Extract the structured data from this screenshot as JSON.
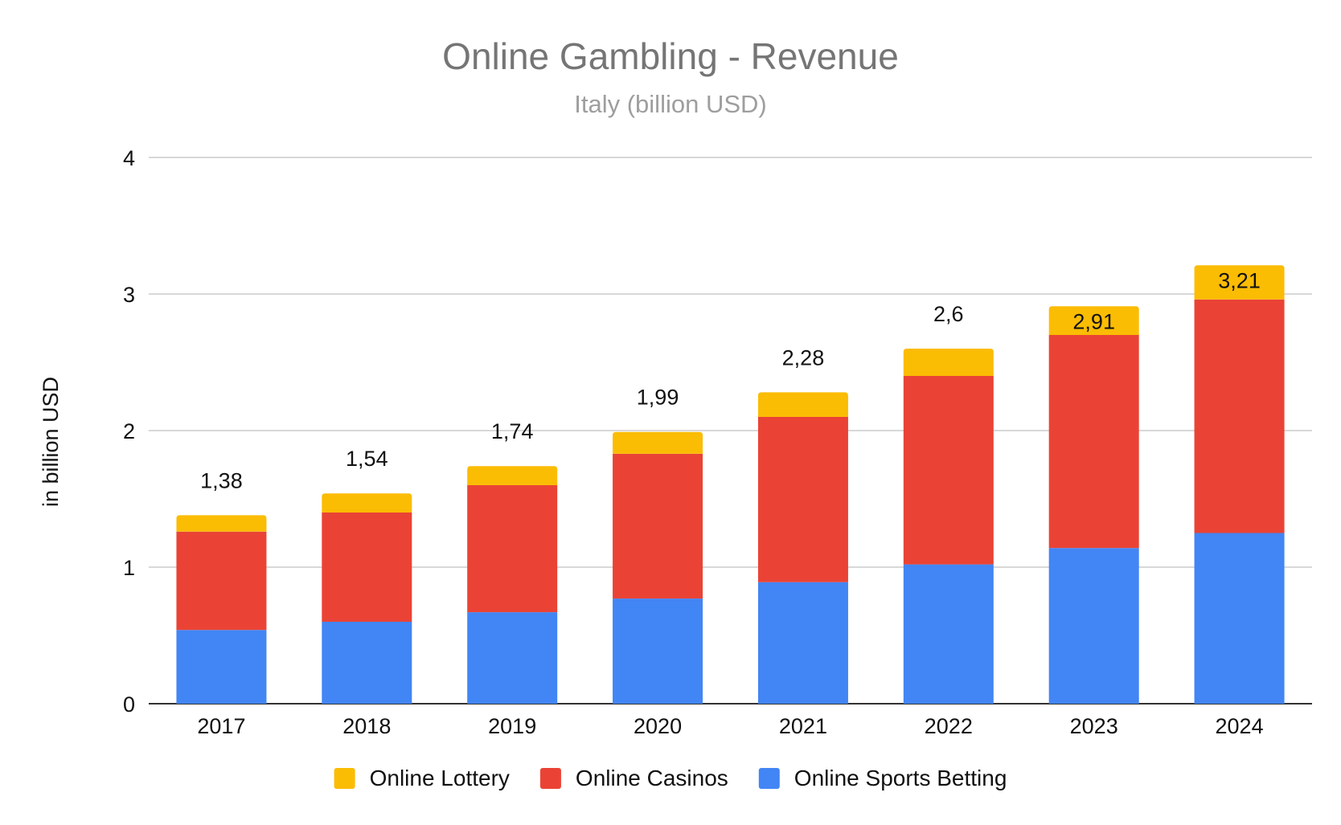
{
  "chart_data": {
    "type": "bar",
    "stacked": true,
    "title": "Online Gambling - Revenue",
    "subtitle": "Italy (billion USD)",
    "xlabel": "",
    "ylabel": "in billion USD",
    "ylim": [
      0,
      4
    ],
    "yticks": [
      "0",
      "1",
      "2",
      "3",
      "4"
    ],
    "grid": true,
    "legend_position": "bottom",
    "categories": [
      "2017",
      "2018",
      "2019",
      "2020",
      "2021",
      "2022",
      "2023",
      "2024"
    ],
    "series": [
      {
        "name": "Online Sports Betting",
        "color": "#4285f4",
        "values": [
          0.54,
          0.6,
          0.67,
          0.77,
          0.89,
          1.02,
          1.14,
          1.25
        ]
      },
      {
        "name": "Online Casinos",
        "color": "#ea4335",
        "values": [
          0.72,
          0.8,
          0.93,
          1.06,
          1.21,
          1.38,
          1.56,
          1.71
        ]
      },
      {
        "name": "Online Lottery",
        "color": "#fbbc04",
        "values": [
          0.12,
          0.14,
          0.14,
          0.16,
          0.18,
          0.2,
          0.21,
          0.25
        ]
      }
    ],
    "totals": [
      1.38,
      1.54,
      1.74,
      1.99,
      2.28,
      2.6,
      2.91,
      3.21
    ],
    "total_labels": [
      "1,38",
      "1,54",
      "1,74",
      "1,99",
      "2,28",
      "2,6",
      "2,91",
      "3,21"
    ],
    "legend_order": [
      "Online Lottery",
      "Online Casinos",
      "Online Sports Betting"
    ]
  }
}
